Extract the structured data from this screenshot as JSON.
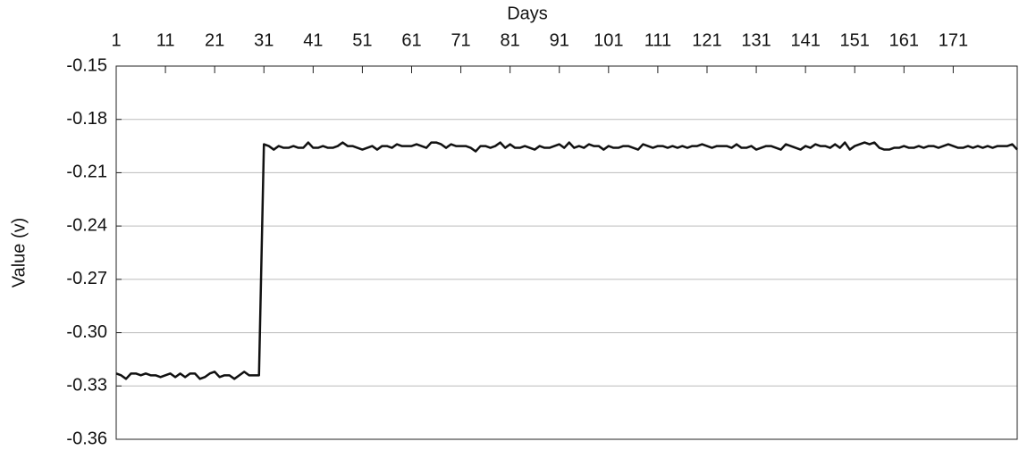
{
  "chart_data": {
    "type": "line",
    "x_label": "Days",
    "y_label": "Value (v)",
    "x": [
      1,
      2,
      3,
      4,
      5,
      6,
      7,
      8,
      9,
      10,
      11,
      12,
      13,
      14,
      15,
      16,
      17,
      18,
      19,
      20,
      21,
      22,
      23,
      24,
      25,
      26,
      27,
      28,
      29,
      30,
      31,
      32,
      33,
      34,
      35,
      36,
      37,
      38,
      39,
      40,
      41,
      42,
      43,
      44,
      45,
      46,
      47,
      48,
      49,
      50,
      51,
      52,
      53,
      54,
      55,
      56,
      57,
      58,
      59,
      60,
      61,
      62,
      63,
      64,
      65,
      66,
      67,
      68,
      69,
      70,
      71,
      72,
      73,
      74,
      75,
      76,
      77,
      78,
      79,
      80,
      81,
      82,
      83,
      84,
      85,
      86,
      87,
      88,
      89,
      90,
      91,
      92,
      93,
      94,
      95,
      96,
      97,
      98,
      99,
      100,
      101,
      102,
      103,
      104,
      105,
      106,
      107,
      108,
      109,
      110,
      111,
      112,
      113,
      114,
      115,
      116,
      117,
      118,
      119,
      120,
      121,
      122,
      123,
      124,
      125,
      126,
      127,
      128,
      129,
      130,
      131,
      132,
      133,
      134,
      135,
      136,
      137,
      138,
      139,
      140,
      141,
      142,
      143,
      144,
      145,
      146,
      147,
      148,
      149,
      150,
      151,
      152,
      153,
      154,
      155,
      156,
      157,
      158,
      159,
      160,
      161,
      162,
      163,
      164,
      165,
      166,
      167,
      168,
      169,
      170,
      171,
      172,
      173,
      174,
      175,
      176,
      177,
      178,
      179,
      180,
      181,
      182,
      183,
      184
    ],
    "series": [
      {
        "color": "#111111",
        "values": [
          -0.323,
          -0.324,
          -0.326,
          -0.323,
          -0.323,
          -0.324,
          -0.323,
          -0.324,
          -0.324,
          -0.325,
          -0.324,
          -0.323,
          -0.325,
          -0.323,
          -0.325,
          -0.323,
          -0.323,
          -0.326,
          -0.325,
          -0.323,
          -0.322,
          -0.325,
          -0.324,
          -0.324,
          -0.326,
          -0.324,
          -0.322,
          -0.324,
          -0.324,
          -0.324,
          -0.194,
          -0.195,
          -0.197,
          -0.195,
          -0.196,
          -0.196,
          -0.195,
          -0.196,
          -0.196,
          -0.193,
          -0.196,
          -0.196,
          -0.195,
          -0.196,
          -0.196,
          -0.195,
          -0.193,
          -0.195,
          -0.195,
          -0.196,
          -0.197,
          -0.196,
          -0.195,
          -0.197,
          -0.195,
          -0.195,
          -0.196,
          -0.194,
          -0.195,
          -0.195,
          -0.195,
          -0.194,
          -0.195,
          -0.196,
          -0.193,
          -0.193,
          -0.194,
          -0.196,
          -0.194,
          -0.195,
          -0.195,
          -0.195,
          -0.196,
          -0.198,
          -0.195,
          -0.195,
          -0.196,
          -0.195,
          -0.193,
          -0.196,
          -0.194,
          -0.196,
          -0.196,
          -0.195,
          -0.196,
          -0.197,
          -0.195,
          -0.196,
          -0.196,
          -0.195,
          -0.194,
          -0.196,
          -0.193,
          -0.196,
          -0.195,
          -0.196,
          -0.194,
          -0.195,
          -0.195,
          -0.197,
          -0.195,
          -0.196,
          -0.196,
          -0.195,
          -0.195,
          -0.196,
          -0.197,
          -0.194,
          -0.195,
          -0.196,
          -0.195,
          -0.195,
          -0.196,
          -0.195,
          -0.196,
          -0.195,
          -0.196,
          -0.195,
          -0.195,
          -0.194,
          -0.195,
          -0.196,
          -0.195,
          -0.195,
          -0.195,
          -0.196,
          -0.194,
          -0.196,
          -0.196,
          -0.195,
          -0.197,
          -0.196,
          -0.195,
          -0.195,
          -0.196,
          -0.197,
          -0.194,
          -0.195,
          -0.196,
          -0.197,
          -0.195,
          -0.196,
          -0.194,
          -0.195,
          -0.195,
          -0.196,
          -0.194,
          -0.196,
          -0.193,
          -0.197,
          -0.195,
          -0.194,
          -0.193,
          -0.194,
          -0.193,
          -0.196,
          -0.197,
          -0.197,
          -0.196,
          -0.196,
          -0.195,
          -0.196,
          -0.196,
          -0.195,
          -0.196,
          -0.195,
          -0.195,
          -0.196,
          -0.195,
          -0.194,
          -0.195,
          -0.196,
          -0.196,
          -0.195,
          -0.196,
          -0.195,
          -0.196,
          -0.195,
          -0.196,
          -0.195,
          -0.195,
          -0.195,
          -0.194,
          -0.197
        ]
      }
    ],
    "xlim": [
      1,
      184
    ],
    "xticks": [
      1,
      11,
      21,
      31,
      41,
      51,
      61,
      71,
      81,
      91,
      101,
      111,
      121,
      131,
      141,
      151,
      161,
      171
    ],
    "ylim": [
      -0.36,
      -0.15
    ],
    "yticks": [
      -0.36,
      -0.33,
      {
        "value": -0.3,
        "label": "-0.30"
      },
      -0.27,
      -0.24,
      -0.21,
      -0.18,
      -0.15
    ],
    "grid": true,
    "x_axis_position": "top"
  }
}
